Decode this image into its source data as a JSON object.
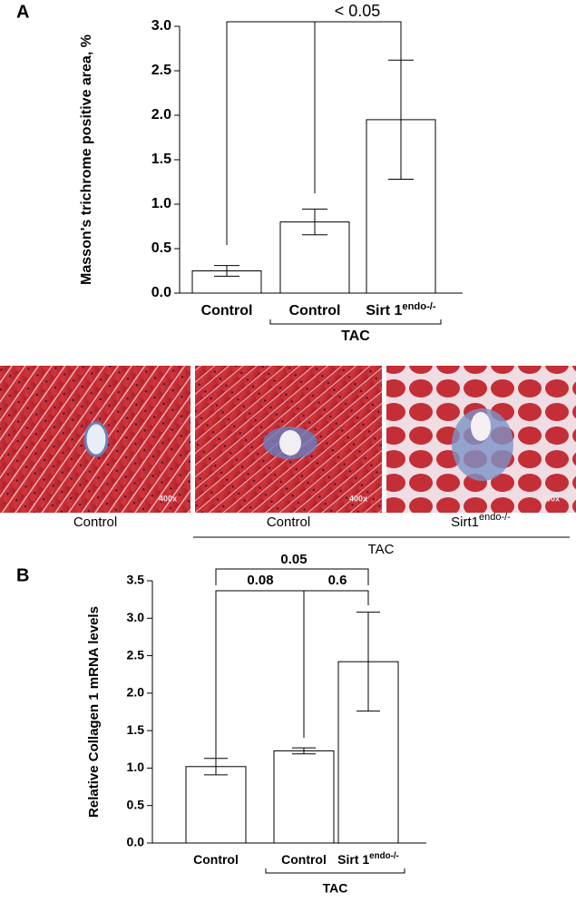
{
  "chart_data": [
    {
      "type": "bar",
      "panel_label": "A",
      "ylabel": "Masson's trichrome positive area, %",
      "categories": [
        "Control",
        "Control",
        "Sirt 1"
      ],
      "superscript": "endo-/-",
      "group_label": "TAC",
      "values": [
        0.25,
        0.8,
        1.95
      ],
      "errors": [
        0.06,
        0.145,
        0.67
      ],
      "color": "#ffffff",
      "ylim": [
        0,
        3
      ],
      "yticks": [
        {
          "value": 0,
          "label": "0.0"
        },
        {
          "value": 0.5,
          "label": "0.5"
        },
        {
          "value": 1,
          "label": "1.0"
        },
        {
          "value": 1.5,
          "label": "1.5"
        },
        {
          "value": 2,
          "label": "2.0"
        },
        {
          "value": 2.5,
          "label": "2.5"
        },
        {
          "value": 3,
          "label": "3.0"
        }
      ],
      "annotations": [
        "< 0.05"
      ]
    },
    {
      "type": "bar",
      "panel_label": "B",
      "ylabel": "Relative Collagen 1 mRNA levels",
      "categories": [
        "Control",
        "Control",
        "Sirt 1"
      ],
      "superscript": "endo-/-",
      "group_label": "TAC",
      "values": [
        1.02,
        1.23,
        2.42
      ],
      "errors": [
        0.11,
        0.04,
        0.66
      ],
      "color": "#ffffff",
      "ylim": [
        0,
        3.5
      ],
      "yticks": [
        {
          "value": 0,
          "label": "0.0"
        },
        {
          "value": 0.5,
          "label": "0.5"
        },
        {
          "value": 1,
          "label": "1.0"
        },
        {
          "value": 1.5,
          "label": "1.5"
        },
        {
          "value": 2,
          "label": "2.0"
        },
        {
          "value": 2.5,
          "label": "2.5"
        },
        {
          "value": 3,
          "label": "3.0"
        },
        {
          "value": 3.5,
          "label": "3.5"
        }
      ],
      "annotations": [
        "0.08",
        "0.6",
        "0.05"
      ]
    }
  ],
  "micrographs": {
    "panels": [
      {
        "caption": "Control",
        "magnification": "400x"
      },
      {
        "caption": "Control",
        "magnification": "400x"
      },
      {
        "caption": "Sirt1",
        "superscript": "endo-/-",
        "magnification": "400x"
      }
    ],
    "group_label": "TAC"
  }
}
